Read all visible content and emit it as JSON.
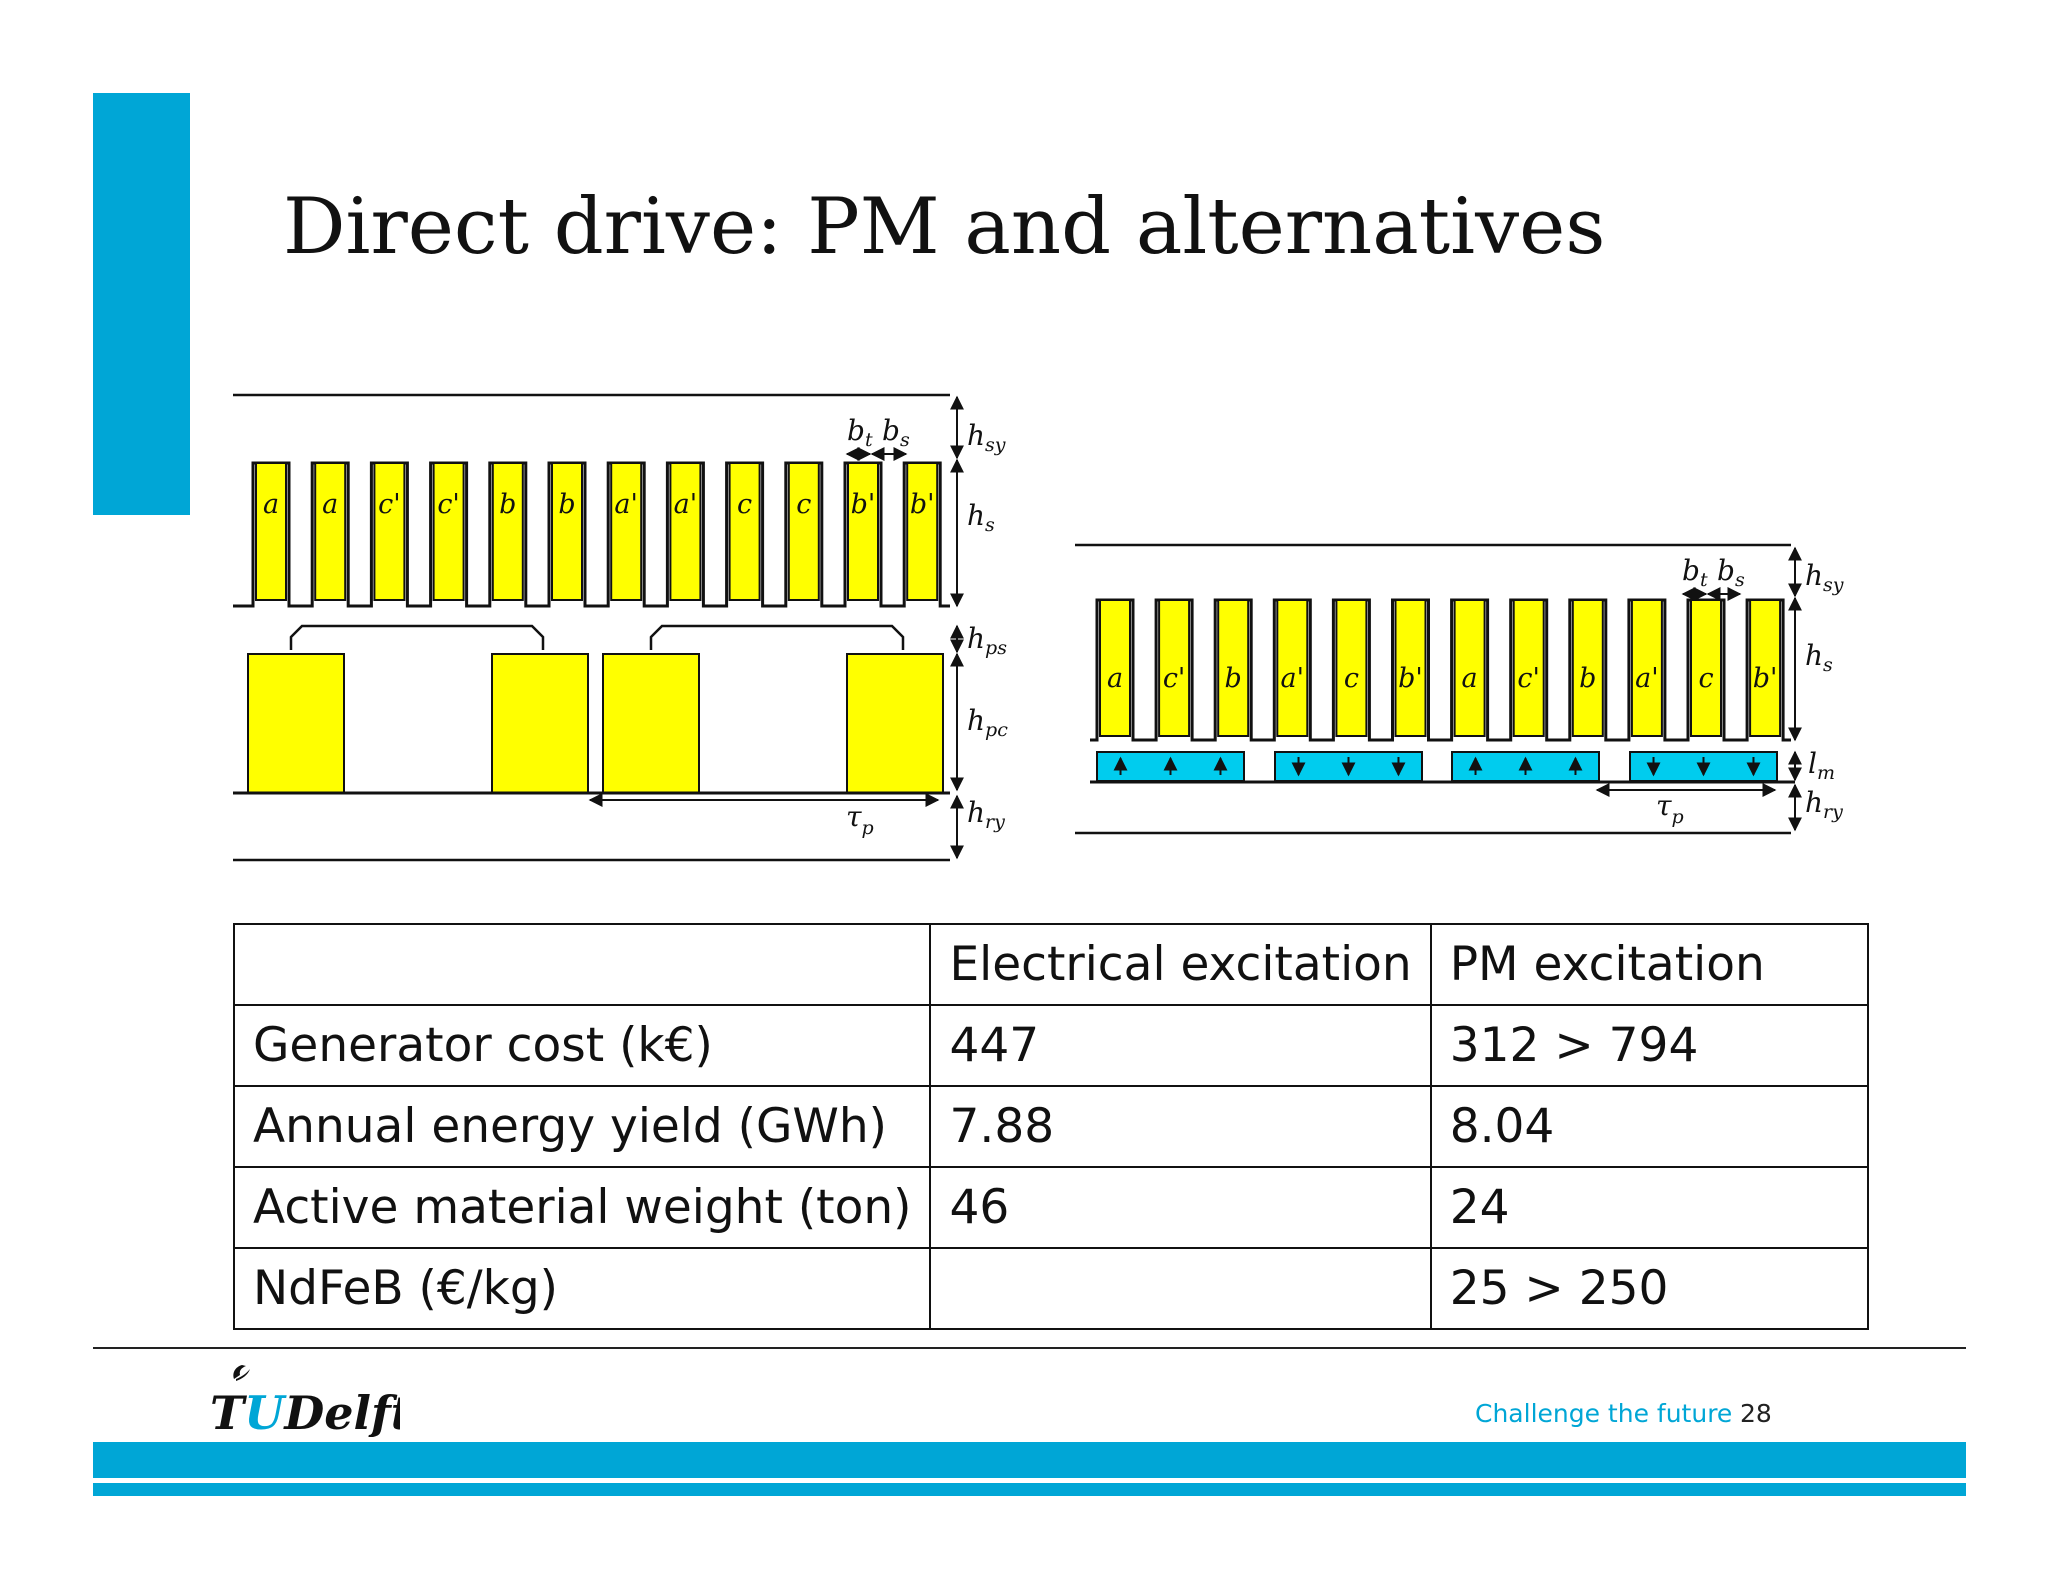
{
  "slide": {
    "title": "Direct drive: PM and alternatives",
    "page_number": "28",
    "tagline": "Challenge the future",
    "logo_text": "TUDelft"
  },
  "colors": {
    "accent": "#00a6d6",
    "coil": "#ffff00",
    "magnet": "#00ccee",
    "line": "#111111"
  },
  "diagram_ee": {
    "slot_labels": [
      "a",
      "a",
      "c'",
      "c'",
      "b",
      "b",
      "a'",
      "a'",
      "c",
      "c",
      "b'",
      "b'"
    ],
    "dims": {
      "bt": "b",
      "bt_sub": "t",
      "bs": "b",
      "bs_sub": "s",
      "hsy": "h",
      "hsy_sub": "sy",
      "hs": "h",
      "hs_sub": "s",
      "hps": "h",
      "hps_sub": "ps",
      "hpc": "h",
      "hpc_sub": "pc",
      "hry": "h",
      "hry_sub": "ry",
      "tau": "τ",
      "tau_sub": "p"
    }
  },
  "diagram_pm": {
    "slot_labels": [
      "a",
      "c'",
      "b",
      "a'",
      "c",
      "b'",
      "a",
      "c'",
      "b",
      "a'",
      "c",
      "b'"
    ],
    "magnet_arrows": [
      "up",
      "down",
      "up",
      "down"
    ],
    "dims": {
      "bt": "b",
      "bt_sub": "t",
      "bs": "b",
      "bs_sub": "s",
      "hsy": "h",
      "hsy_sub": "sy",
      "hs": "h",
      "hs_sub": "s",
      "lm": "l",
      "lm_sub": "m",
      "hry": "h",
      "hry_sub": "ry",
      "tau": "τ",
      "tau_sub": "p"
    }
  },
  "table": {
    "headers": [
      "",
      "Electrical excitation",
      "PM excitation"
    ],
    "rows": [
      [
        "Generator cost (k€)",
        "447",
        "312 > 794"
      ],
      [
        "Annual energy yield (GWh)",
        "7.88",
        "8.04"
      ],
      [
        "Active material weight (ton)",
        "46",
        "24"
      ],
      [
        "NdFeB (€/kg)",
        "",
        "25 > 250"
      ]
    ]
  }
}
